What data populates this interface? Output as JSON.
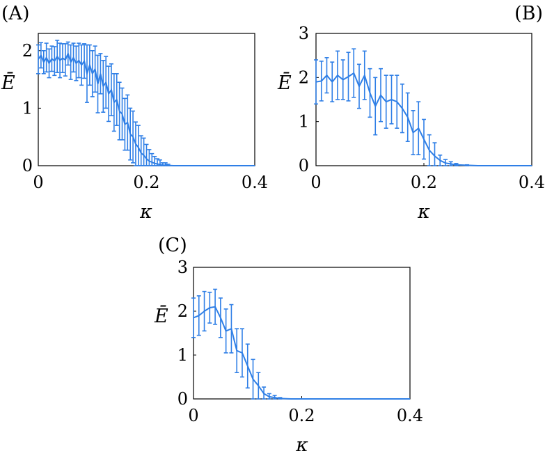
{
  "colors": {
    "series": "#2f7fe6",
    "axes": "#000000"
  },
  "chart_data": [
    {
      "type": "line",
      "panel_label": "(A)",
      "xlabel": "κ",
      "ylabel": "Ē",
      "xlim": [
        0,
        0.4
      ],
      "ylim": [
        0,
        2.3
      ],
      "xticks": [
        "0",
        "0.2",
        "0.4"
      ],
      "xtick_values": [
        0,
        0.2,
        0.4
      ],
      "yticks": [
        "0",
        "1",
        "2"
      ],
      "ytick_values": [
        0,
        1,
        2
      ],
      "series": [
        {
          "x": [
            0,
            0.005,
            0.01,
            0.015,
            0.02,
            0.025,
            0.03,
            0.035,
            0.04,
            0.045,
            0.05,
            0.055,
            0.06,
            0.065,
            0.07,
            0.075,
            0.08,
            0.085,
            0.09,
            0.095,
            0.1,
            0.105,
            0.11,
            0.115,
            0.12,
            0.125,
            0.13,
            0.135,
            0.14,
            0.145,
            0.15,
            0.155,
            0.16,
            0.165,
            0.17,
            0.175,
            0.18,
            0.185,
            0.19,
            0.195,
            0.2,
            0.205,
            0.21,
            0.215,
            0.22,
            0.225,
            0.23,
            0.235,
            0.24,
            0.25,
            0.26,
            0.27,
            0.28,
            0.3,
            0.32,
            0.34,
            0.36,
            0.38,
            0.4
          ],
          "y": [
            1.85,
            1.92,
            1.8,
            1.88,
            1.78,
            1.86,
            1.82,
            1.9,
            1.83,
            1.87,
            1.84,
            1.95,
            1.8,
            1.88,
            1.78,
            1.83,
            1.75,
            1.82,
            1.6,
            1.75,
            1.6,
            1.68,
            1.42,
            1.6,
            1.38,
            1.45,
            1.25,
            1.32,
            1.1,
            1.15,
            0.95,
            0.9,
            0.72,
            0.75,
            0.55,
            0.5,
            0.38,
            0.32,
            0.22,
            0.18,
            0.12,
            0.08,
            0.06,
            0.04,
            0.03,
            0.02,
            0.01,
            0.01,
            0.005,
            0.0,
            0.0,
            0.0,
            0.0,
            0.0,
            0.0,
            0.0,
            0.0,
            0.0,
            0.0
          ],
          "err": [
            0.25,
            0.22,
            0.2,
            0.25,
            0.25,
            0.22,
            0.25,
            0.28,
            0.3,
            0.25,
            0.28,
            0.2,
            0.3,
            0.25,
            0.3,
            0.3,
            0.35,
            0.3,
            0.5,
            0.35,
            0.4,
            0.4,
            0.5,
            0.35,
            0.45,
            0.45,
            0.48,
            0.45,
            0.5,
            0.45,
            0.5,
            0.45,
            0.45,
            0.48,
            0.45,
            0.45,
            0.38,
            0.38,
            0.3,
            0.3,
            0.25,
            0.2,
            0.15,
            0.12,
            0.09,
            0.08,
            0.04,
            0.04,
            0.02,
            0,
            0,
            0,
            0,
            0,
            0,
            0,
            0,
            0,
            0
          ]
        }
      ]
    },
    {
      "type": "line",
      "panel_label": "(B)",
      "xlabel": "κ",
      "ylabel": "Ē",
      "xlim": [
        0,
        0.4
      ],
      "ylim": [
        0,
        3
      ],
      "xticks": [
        "0",
        "0.2",
        "0.4"
      ],
      "xtick_values": [
        0,
        0.2,
        0.4
      ],
      "yticks": [
        "0",
        "1",
        "2",
        "3"
      ],
      "ytick_values": [
        0,
        1,
        2,
        3
      ],
      "series": [
        {
          "x": [
            0,
            0.01,
            0.02,
            0.03,
            0.04,
            0.05,
            0.06,
            0.07,
            0.08,
            0.09,
            0.1,
            0.11,
            0.12,
            0.13,
            0.14,
            0.15,
            0.16,
            0.17,
            0.18,
            0.19,
            0.2,
            0.21,
            0.22,
            0.23,
            0.24,
            0.25,
            0.26,
            0.28,
            0.3,
            0.32,
            0.34,
            0.36,
            0.38,
            0.4
          ],
          "y": [
            1.9,
            1.92,
            2.05,
            1.9,
            2.05,
            1.95,
            2.02,
            2.1,
            1.8,
            2.05,
            1.65,
            1.35,
            1.6,
            1.45,
            1.5,
            1.45,
            1.3,
            1.1,
            0.75,
            0.85,
            0.6,
            0.35,
            0.22,
            0.12,
            0.06,
            0.04,
            0.02,
            0.01,
            0.0,
            0.0,
            0.0,
            0.0,
            0.0,
            0.0
          ],
          "err": [
            0.5,
            0.45,
            0.4,
            0.45,
            0.55,
            0.45,
            0.55,
            0.55,
            0.5,
            0.55,
            0.55,
            0.65,
            0.6,
            0.6,
            0.55,
            0.6,
            0.55,
            0.55,
            0.5,
            0.6,
            0.45,
            0.35,
            0.3,
            0.12,
            0.08,
            0.05,
            0.03,
            0.01,
            0,
            0,
            0,
            0,
            0,
            0
          ]
        }
      ]
    },
    {
      "type": "line",
      "panel_label": "(C)",
      "xlabel": "κ",
      "ylabel": "Ē",
      "xlim": [
        0,
        0.4
      ],
      "ylim": [
        0,
        3
      ],
      "xticks": [
        "0",
        "0.2",
        "0.4"
      ],
      "xtick_values": [
        0,
        0.2,
        0.4
      ],
      "yticks": [
        "0",
        "1",
        "2",
        "3"
      ],
      "ytick_values": [
        0,
        1,
        2,
        3
      ],
      "series": [
        {
          "x": [
            0,
            0.01,
            0.02,
            0.03,
            0.04,
            0.05,
            0.06,
            0.07,
            0.08,
            0.09,
            0.1,
            0.11,
            0.12,
            0.13,
            0.14,
            0.15,
            0.16,
            0.18,
            0.2,
            0.25,
            0.3,
            0.35,
            0.4
          ],
          "y": [
            1.85,
            1.9,
            2.0,
            2.08,
            2.1,
            1.85,
            1.55,
            1.6,
            1.1,
            1.05,
            0.75,
            0.45,
            0.3,
            0.12,
            0.05,
            0.03,
            0.01,
            0.0,
            0.0,
            0.0,
            0.0,
            0.0,
            0.0
          ],
          "err": [
            0.45,
            0.45,
            0.45,
            0.35,
            0.4,
            0.45,
            0.5,
            0.55,
            0.5,
            0.55,
            0.5,
            0.45,
            0.3,
            0.15,
            0.07,
            0.05,
            0.02,
            0,
            0,
            0,
            0,
            0,
            0
          ]
        }
      ]
    }
  ]
}
